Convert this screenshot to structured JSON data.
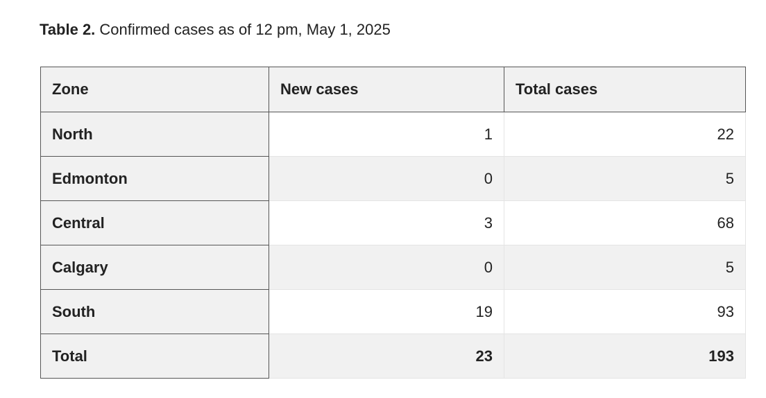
{
  "caption": {
    "label": "Table 2.",
    "text": "Confirmed cases as of 12 pm, May 1, 2025"
  },
  "table": {
    "headers": [
      "Zone",
      "New cases",
      "Total cases"
    ],
    "rows": [
      {
        "zone": "North",
        "new_cases": "1",
        "total_cases": "22"
      },
      {
        "zone": "Edmonton",
        "new_cases": "0",
        "total_cases": "5"
      },
      {
        "zone": "Central",
        "new_cases": "3",
        "total_cases": "68"
      },
      {
        "zone": "Calgary",
        "new_cases": "0",
        "total_cases": "5"
      },
      {
        "zone": "South",
        "new_cases": "19",
        "total_cases": "93"
      },
      {
        "zone": "Total",
        "new_cases": "23",
        "total_cases": "193"
      }
    ]
  }
}
